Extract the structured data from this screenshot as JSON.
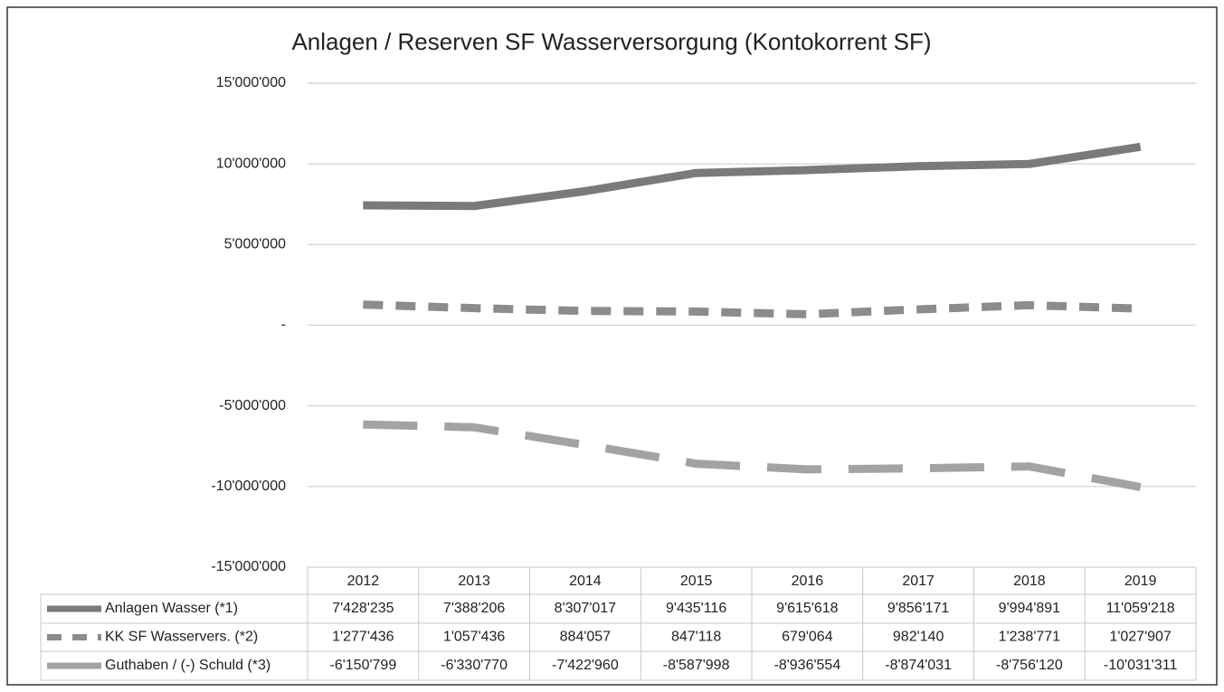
{
  "chart_data": {
    "type": "line",
    "title": "Anlagen /  Reserven SF Wasserversorgung (Kontokorrent SF)",
    "categories": [
      "2012",
      "2013",
      "2014",
      "2015",
      "2016",
      "2017",
      "2018",
      "2019"
    ],
    "series": [
      {
        "name": "Anlagen Wasser (*1)",
        "color": "#7a7a7a",
        "dash": "none",
        "values": [
          7428235,
          7388206,
          8307017,
          9435116,
          9615618,
          9856171,
          9994891,
          11059218
        ],
        "value_labels": [
          "7'428'235",
          "7'388'206",
          "8'307'017",
          "9'435'116",
          "9'615'618",
          "9'856'171",
          "9'994'891",
          "11'059'218"
        ]
      },
      {
        "name": "KK SF Wasservers. (*2)",
        "color": "#8c8c8c",
        "dash": "22 14",
        "values": [
          1277436,
          1057436,
          884057,
          847118,
          679064,
          982140,
          1238771,
          1027907
        ],
        "value_labels": [
          "1'277'436",
          "1'057'436",
          "884'057",
          "847'118",
          "679'064",
          "982'140",
          "1'238'771",
          "1'027'907"
        ]
      },
      {
        "name": "Guthaben / (-) Schuld (*3)",
        "color": "#a3a3a3",
        "dash": "60 30",
        "values": [
          -6150799,
          -6330770,
          -7422960,
          -8587998,
          -8936554,
          -8874031,
          -8756120,
          -10031311
        ],
        "value_labels": [
          "-6'150'799",
          "-6'330'770",
          "-7'422'960",
          "-8'587'998",
          "-8'936'554",
          "-8'874'031",
          "-8'756'120",
          "-10'031'311"
        ]
      }
    ],
    "ylim": [
      -15000000,
      15000000
    ],
    "yticks": [
      {
        "value": -15000000,
        "label": "-15'000'000"
      },
      {
        "value": -10000000,
        "label": "-10'000'000"
      },
      {
        "value": -5000000,
        "label": "-5'000'000"
      },
      {
        "value": 0,
        "label": "-"
      },
      {
        "value": 5000000,
        "label": "5'000'000"
      },
      {
        "value": 10000000,
        "label": "10'000'000"
      },
      {
        "value": 15000000,
        "label": "15'000'000"
      }
    ],
    "grid": true
  }
}
